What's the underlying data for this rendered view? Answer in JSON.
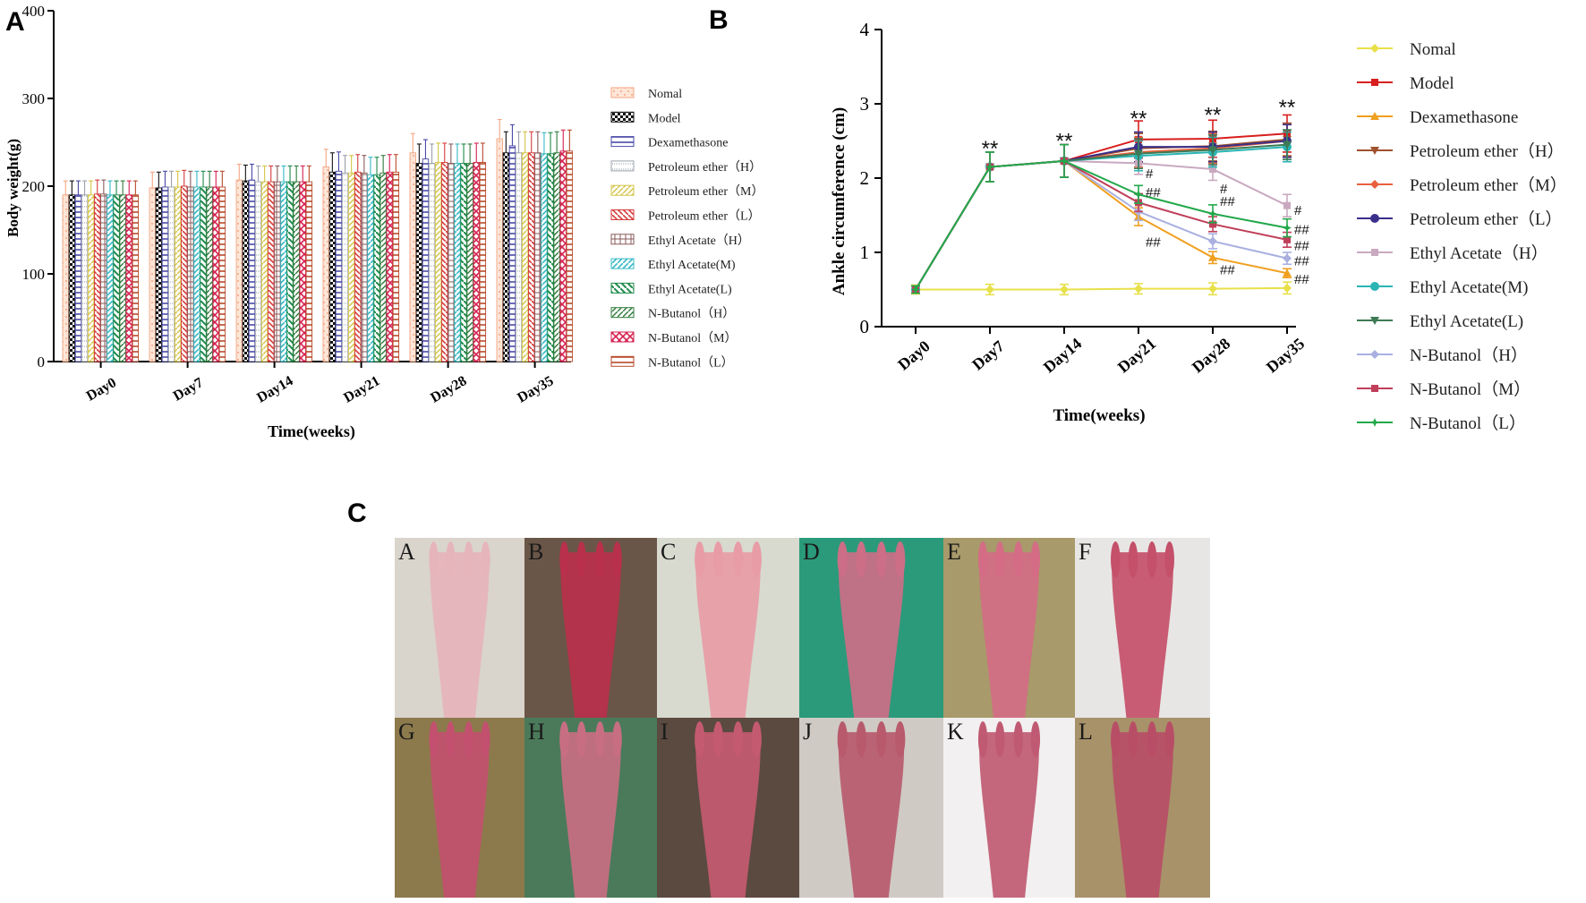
{
  "panels": {
    "a": "A",
    "b": "B",
    "c": "C"
  },
  "groups": [
    "Nomal",
    "Model",
    "Dexamethasone",
    "Petroleum ether（H）",
    "Petroleum ether（M）",
    "Petroleum ether（L）",
    "Ethyl Acetate（H）",
    "Ethyl Acetate(M)",
    "Ethyl Acetate(L)",
    "N-Butanol（H）",
    "N-Butanol（M）",
    "N-Butanol（L）"
  ],
  "legend_a": [
    "Nomal",
    "Model",
    "Dexamethasone",
    "Petroleum ether（H）",
    "Petroleum ether（M）",
    "Petroleum ether（L）",
    "Ethyl Acetate（H）",
    "Ethyl Acetate(M)",
    "Ethyl Acetate(L)",
    "N-Butanol（H）",
    "N-Butanol（M）",
    "N-Butanol（L）"
  ],
  "series_colors": [
    "#f4a582",
    "#111111",
    "#4a4aa8",
    "#9aa0aa",
    "#d4c445",
    "#d63a3a",
    "#8a5a5a",
    "#35b8c4",
    "#1e8a4a",
    "#2f7a3a",
    "#d62050",
    "#b84a2a"
  ],
  "line_colors": [
    "#e8e04a",
    "#d81e1e",
    "#f0a020",
    "#a0522d",
    "#e8603c",
    "#3a2f8a",
    "#c9a9c0",
    "#2ab4b4",
    "#3d7a55",
    "#a9b0e0",
    "#c0405a",
    "#22a84a"
  ],
  "chart_data": [
    {
      "type": "bar",
      "title": "",
      "xlabel": "Time(weeks)",
      "ylabel": "Body weight(g)",
      "ylim": [
        0,
        400
      ],
      "yticks": [
        "0",
        "100",
        "200",
        "300",
        "400"
      ],
      "categories": [
        "Day0",
        "Day7",
        "Day14",
        "Day21",
        "Day28",
        "Day35"
      ],
      "series": [
        {
          "name": "Nomal",
          "values": [
            190,
            198,
            207,
            222,
            238,
            254
          ],
          "errors": [
            16,
            18,
            18,
            20,
            22,
            22
          ]
        },
        {
          "name": "Model",
          "values": [
            190,
            198,
            206,
            216,
            226,
            238
          ],
          "errors": [
            16,
            18,
            18,
            22,
            22,
            24
          ]
        },
        {
          "name": "Dexamethasone",
          "values": [
            190,
            199,
            207,
            217,
            231,
            246
          ],
          "errors": [
            16,
            18,
            18,
            22,
            22,
            24
          ]
        },
        {
          "name": "Petroleum ether（H）",
          "values": [
            190,
            199,
            205,
            215,
            226,
            238
          ],
          "errors": [
            16,
            18,
            18,
            20,
            22,
            24
          ]
        },
        {
          "name": "Petroleum ether（M）",
          "values": [
            190,
            199,
            205,
            215,
            227,
            238
          ],
          "errors": [
            16,
            18,
            18,
            20,
            22,
            24
          ]
        },
        {
          "name": "Petroleum ether（L）",
          "values": [
            191,
            200,
            205,
            216,
            227,
            238
          ],
          "errors": [
            16,
            18,
            18,
            20,
            22,
            24
          ]
        },
        {
          "name": "Ethyl Acetate（H）",
          "values": [
            191,
            199,
            205,
            215,
            226,
            238
          ],
          "errors": [
            16,
            18,
            18,
            20,
            22,
            24
          ]
        },
        {
          "name": "Ethyl Acetate(M)",
          "values": [
            190,
            199,
            205,
            213,
            226,
            237
          ],
          "errors": [
            16,
            18,
            18,
            20,
            22,
            24
          ]
        },
        {
          "name": "Ethyl Acetate(L)",
          "values": [
            190,
            199,
            205,
            213,
            226,
            237
          ],
          "errors": [
            16,
            18,
            18,
            20,
            22,
            24
          ]
        },
        {
          "name": "N-Butanol（H）",
          "values": [
            190,
            199,
            205,
            215,
            226,
            238
          ],
          "errors": [
            16,
            18,
            18,
            20,
            22,
            24
          ]
        },
        {
          "name": "N-Butanol（M）",
          "values": [
            190,
            199,
            205,
            216,
            227,
            240
          ],
          "errors": [
            16,
            18,
            18,
            20,
            22,
            24
          ]
        },
        {
          "name": "N-Butanol（L）",
          "values": [
            190,
            199,
            205,
            216,
            227,
            240
          ],
          "errors": [
            16,
            18,
            18,
            20,
            22,
            24
          ]
        }
      ]
    },
    {
      "type": "line",
      "title": "",
      "xlabel": "Time(weeks)",
      "ylabel": "Ankle circumference (cm)",
      "ylim": [
        0,
        4
      ],
      "yticks": [
        "0",
        "1",
        "2",
        "3",
        "4"
      ],
      "categories": [
        "Day0",
        "Day7",
        "Day14",
        "Day21",
        "Day28",
        "Day35"
      ],
      "series": [
        {
          "name": "Nomal",
          "values": [
            0.5,
            0.5,
            0.5,
            0.51,
            0.51,
            0.52
          ],
          "errors": [
            0.06,
            0.07,
            0.07,
            0.07,
            0.08,
            0.08
          ]
        },
        {
          "name": "Model",
          "values": [
            0.5,
            2.15,
            2.23,
            2.52,
            2.53,
            2.6
          ],
          "errors": [
            0.05,
            0.2,
            0.22,
            0.25,
            0.25,
            0.25
          ]
        },
        {
          "name": "Dexamethasone",
          "values": [
            0.5,
            2.15,
            2.23,
            1.48,
            0.93,
            0.72
          ],
          "errors": [
            0.05,
            0.2,
            0.22,
            0.12,
            0.08,
            0.06
          ]
        },
        {
          "name": "Petroleum ether（H）",
          "values": [
            0.5,
            2.15,
            2.23,
            2.4,
            2.43,
            2.52
          ],
          "errors": [
            0.05,
            0.2,
            0.22,
            0.2,
            0.2,
            0.22
          ]
        },
        {
          "name": "Petroleum ether（M）",
          "values": [
            0.5,
            2.15,
            2.23,
            2.35,
            2.4,
            2.5
          ],
          "errors": [
            0.05,
            0.2,
            0.22,
            0.2,
            0.2,
            0.22
          ]
        },
        {
          "name": "Petroleum ether（L）",
          "values": [
            0.5,
            2.15,
            2.23,
            2.42,
            2.42,
            2.5
          ],
          "errors": [
            0.05,
            0.2,
            0.22,
            0.2,
            0.2,
            0.22
          ]
        },
        {
          "name": "Ethyl Acetate（H）",
          "values": [
            0.5,
            2.15,
            2.23,
            2.2,
            2.12,
            1.63
          ],
          "errors": [
            0.05,
            0.2,
            0.22,
            0.15,
            0.15,
            0.15
          ]
        },
        {
          "name": "Ethyl Acetate(M)",
          "values": [
            0.5,
            2.15,
            2.23,
            2.3,
            2.35,
            2.42
          ],
          "errors": [
            0.05,
            0.2,
            0.22,
            0.2,
            0.2,
            0.2
          ]
        },
        {
          "name": "Ethyl Acetate(L)",
          "values": [
            0.5,
            2.15,
            2.23,
            2.33,
            2.38,
            2.45
          ],
          "errors": [
            0.05,
            0.2,
            0.22,
            0.2,
            0.2,
            0.2
          ]
        },
        {
          "name": "N-Butanol（H）",
          "values": [
            0.5,
            2.15,
            2.23,
            1.55,
            1.15,
            0.92
          ],
          "errors": [
            0.05,
            0.2,
            0.22,
            0.12,
            0.1,
            0.08
          ]
        },
        {
          "name": "N-Butanol（M）",
          "values": [
            0.5,
            2.15,
            2.23,
            1.67,
            1.38,
            1.17
          ],
          "errors": [
            0.05,
            0.2,
            0.22,
            0.12,
            0.1,
            0.1
          ]
        },
        {
          "name": "N-Butanol（L）",
          "values": [
            0.5,
            2.15,
            2.23,
            1.78,
            1.52,
            1.33
          ],
          "errors": [
            0.05,
            0.2,
            0.22,
            0.12,
            0.12,
            0.12
          ]
        }
      ],
      "annotations": [
        {
          "text": "**",
          "category": "Day7",
          "y": 2.4
        },
        {
          "text": "**",
          "category": "Day14",
          "y": 2.5
        },
        {
          "text": "**",
          "category": "Day21",
          "y": 2.8
        },
        {
          "text": "**",
          "category": "Day28",
          "y": 2.85
        },
        {
          "text": "**",
          "category": "Day35",
          "y": 2.95
        },
        {
          "text": "#",
          "category": "Day21",
          "y": 2.07
        },
        {
          "text": "##",
          "category": "Day21",
          "y": 1.82
        },
        {
          "text": "##",
          "category": "Day21",
          "y": 1.15
        },
        {
          "text": "#",
          "category": "Day28",
          "y": 1.87
        },
        {
          "text": "##",
          "category": "Day28",
          "y": 1.7
        },
        {
          "text": "##",
          "category": "Day28",
          "y": 0.78
        },
        {
          "text": "#",
          "category": "Day35",
          "y": 1.58
        },
        {
          "text": "##",
          "category": "Day35",
          "y": 1.32
        },
        {
          "text": "##",
          "category": "Day35",
          "y": 1.1
        },
        {
          "text": "##",
          "category": "Day35",
          "y": 0.9
        },
        {
          "text": "##",
          "category": "Day35",
          "y": 0.65
        }
      ]
    }
  ],
  "photos": [
    "A",
    "B",
    "C",
    "D",
    "E",
    "F",
    "G",
    "H",
    "I",
    "J",
    "K",
    "L"
  ]
}
